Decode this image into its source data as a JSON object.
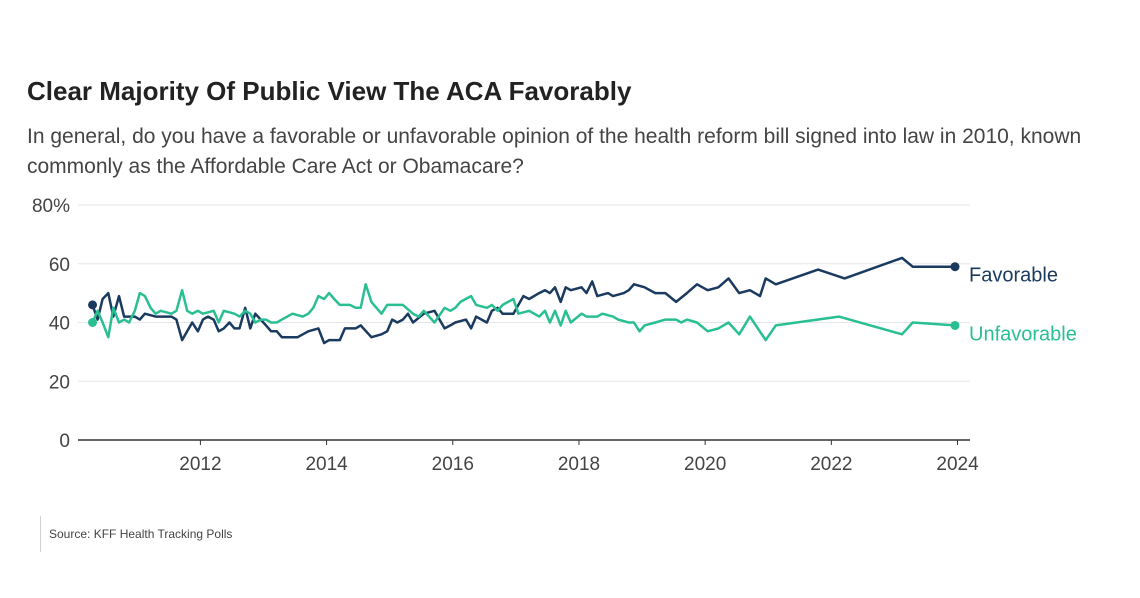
{
  "chart_data": {
    "type": "line",
    "title": "Clear Majority Of Public View The ACA Favorably",
    "subtitle": "In general, do you have a favorable or unfavorable opinion of the health reform bill signed into law in 2010, known commonly as the Affordable Care Act or Obamacare?",
    "xlabel": "",
    "ylabel": "",
    "x_ticks": [
      "2012",
      "2014",
      "2016",
      "2018",
      "2020",
      "2022",
      "2024"
    ],
    "y_ticks": [
      "0",
      "20",
      "40",
      "60",
      "80%"
    ],
    "ylim": [
      0,
      80
    ],
    "xlim": [
      2010.2,
      2024.0
    ],
    "grid": true,
    "legend": "direct labels at line ends",
    "series": [
      {
        "name": "Favorable",
        "color": "#1b3a5f",
        "points": [
          [
            2010.29,
            46
          ],
          [
            2010.37,
            41
          ],
          [
            2010.45,
            48
          ],
          [
            2010.54,
            50
          ],
          [
            2010.62,
            42
          ],
          [
            2010.71,
            49
          ],
          [
            2010.79,
            42
          ],
          [
            2010.87,
            42
          ],
          [
            2010.96,
            42
          ],
          [
            2011.04,
            41
          ],
          [
            2011.12,
            43
          ],
          [
            2011.29,
            42
          ],
          [
            2011.37,
            42
          ],
          [
            2011.45,
            42
          ],
          [
            2011.54,
            42
          ],
          [
            2011.62,
            41
          ],
          [
            2011.71,
            34
          ],
          [
            2011.79,
            37
          ],
          [
            2011.87,
            40
          ],
          [
            2011.96,
            37
          ],
          [
            2012.04,
            41
          ],
          [
            2012.12,
            42
          ],
          [
            2012.21,
            41
          ],
          [
            2012.29,
            37
          ],
          [
            2012.37,
            38
          ],
          [
            2012.46,
            40
          ],
          [
            2012.54,
            38
          ],
          [
            2012.62,
            38
          ],
          [
            2012.71,
            45
          ],
          [
            2012.79,
            38
          ],
          [
            2012.87,
            43
          ],
          [
            2013.04,
            39
          ],
          [
            2013.12,
            37
          ],
          [
            2013.21,
            37
          ],
          [
            2013.29,
            35
          ],
          [
            2013.46,
            35
          ],
          [
            2013.54,
            35
          ],
          [
            2013.71,
            37
          ],
          [
            2013.87,
            38
          ],
          [
            2013.96,
            33
          ],
          [
            2014.04,
            34
          ],
          [
            2014.21,
            34
          ],
          [
            2014.29,
            38
          ],
          [
            2014.46,
            38
          ],
          [
            2014.54,
            39
          ],
          [
            2014.71,
            35
          ],
          [
            2014.87,
            36
          ],
          [
            2014.96,
            37
          ],
          [
            2015.04,
            41
          ],
          [
            2015.12,
            40
          ],
          [
            2015.21,
            41
          ],
          [
            2015.29,
            43
          ],
          [
            2015.37,
            40
          ],
          [
            2015.54,
            43
          ],
          [
            2015.71,
            44
          ],
          [
            2015.87,
            38
          ],
          [
            2015.96,
            39
          ],
          [
            2016.04,
            40
          ],
          [
            2016.21,
            41
          ],
          [
            2016.29,
            38
          ],
          [
            2016.37,
            42
          ],
          [
            2016.54,
            40
          ],
          [
            2016.62,
            44
          ],
          [
            2016.71,
            45
          ],
          [
            2016.79,
            43
          ],
          [
            2016.96,
            43
          ],
          [
            2017.04,
            46
          ],
          [
            2017.12,
            49
          ],
          [
            2017.21,
            48
          ],
          [
            2017.37,
            50
          ],
          [
            2017.46,
            51
          ],
          [
            2017.54,
            50
          ],
          [
            2017.62,
            52
          ],
          [
            2017.71,
            47
          ],
          [
            2017.79,
            52
          ],
          [
            2017.87,
            51
          ],
          [
            2018.04,
            52
          ],
          [
            2018.12,
            50
          ],
          [
            2018.21,
            54
          ],
          [
            2018.29,
            49
          ],
          [
            2018.46,
            50
          ],
          [
            2018.54,
            49
          ],
          [
            2018.71,
            50
          ],
          [
            2018.79,
            51
          ],
          [
            2018.87,
            53
          ],
          [
            2019.04,
            52
          ],
          [
            2019.21,
            50
          ],
          [
            2019.37,
            50
          ],
          [
            2019.54,
            47
          ],
          [
            2019.71,
            50
          ],
          [
            2019.87,
            53
          ],
          [
            2020.04,
            51
          ],
          [
            2020.21,
            52
          ],
          [
            2020.37,
            55
          ],
          [
            2020.54,
            50
          ],
          [
            2020.71,
            51
          ],
          [
            2020.87,
            49
          ],
          [
            2020.96,
            55
          ],
          [
            2021.12,
            53
          ],
          [
            2021.79,
            58
          ],
          [
            2022.21,
            55
          ],
          [
            2023.12,
            62
          ],
          [
            2023.29,
            59
          ],
          [
            2023.96,
            59
          ]
        ]
      },
      {
        "name": "Unfavorable",
        "color": "#2abf92",
        "points": [
          [
            2010.29,
            40
          ],
          [
            2010.37,
            44
          ],
          [
            2010.45,
            40
          ],
          [
            2010.54,
            35
          ],
          [
            2010.62,
            45
          ],
          [
            2010.71,
            40
          ],
          [
            2010.79,
            41
          ],
          [
            2010.87,
            40
          ],
          [
            2010.96,
            44
          ],
          [
            2011.04,
            50
          ],
          [
            2011.12,
            49
          ],
          [
            2011.21,
            45
          ],
          [
            2011.29,
            43
          ],
          [
            2011.37,
            44
          ],
          [
            2011.54,
            43
          ],
          [
            2011.62,
            44
          ],
          [
            2011.71,
            51
          ],
          [
            2011.79,
            44
          ],
          [
            2011.87,
            43
          ],
          [
            2011.96,
            44
          ],
          [
            2012.04,
            43
          ],
          [
            2012.21,
            44
          ],
          [
            2012.29,
            40
          ],
          [
            2012.37,
            44
          ],
          [
            2012.54,
            43
          ],
          [
            2012.62,
            42
          ],
          [
            2012.71,
            44
          ],
          [
            2012.79,
            43
          ],
          [
            2012.87,
            40
          ],
          [
            2012.96,
            41
          ],
          [
            2013.04,
            41
          ],
          [
            2013.12,
            40
          ],
          [
            2013.21,
            40
          ],
          [
            2013.29,
            41
          ],
          [
            2013.46,
            43
          ],
          [
            2013.62,
            42
          ],
          [
            2013.71,
            43
          ],
          [
            2013.79,
            45
          ],
          [
            2013.87,
            49
          ],
          [
            2013.96,
            48
          ],
          [
            2014.04,
            50
          ],
          [
            2014.12,
            48
          ],
          [
            2014.21,
            46
          ],
          [
            2014.37,
            46
          ],
          [
            2014.46,
            45
          ],
          [
            2014.54,
            45
          ],
          [
            2014.62,
            53
          ],
          [
            2014.71,
            47
          ],
          [
            2014.79,
            45
          ],
          [
            2014.87,
            43
          ],
          [
            2014.96,
            46
          ],
          [
            2015.21,
            46
          ],
          [
            2015.37,
            43
          ],
          [
            2015.46,
            42
          ],
          [
            2015.54,
            44
          ],
          [
            2015.71,
            40
          ],
          [
            2015.87,
            45
          ],
          [
            2015.96,
            44
          ],
          [
            2016.04,
            45
          ],
          [
            2016.12,
            47
          ],
          [
            2016.29,
            49
          ],
          [
            2016.37,
            46
          ],
          [
            2016.54,
            45
          ],
          [
            2016.62,
            46
          ],
          [
            2016.71,
            44
          ],
          [
            2016.79,
            46
          ],
          [
            2016.96,
            48
          ],
          [
            2017.04,
            43
          ],
          [
            2017.21,
            44
          ],
          [
            2017.29,
            43
          ],
          [
            2017.37,
            42
          ],
          [
            2017.46,
            44
          ],
          [
            2017.54,
            40
          ],
          [
            2017.62,
            44
          ],
          [
            2017.71,
            39
          ],
          [
            2017.79,
            44
          ],
          [
            2017.87,
            40
          ],
          [
            2018.04,
            43
          ],
          [
            2018.12,
            42
          ],
          [
            2018.29,
            42
          ],
          [
            2018.37,
            43
          ],
          [
            2018.54,
            42
          ],
          [
            2018.62,
            41
          ],
          [
            2018.79,
            40
          ],
          [
            2018.87,
            40
          ],
          [
            2018.96,
            37
          ],
          [
            2019.04,
            39
          ],
          [
            2019.21,
            40
          ],
          [
            2019.37,
            41
          ],
          [
            2019.54,
            41
          ],
          [
            2019.62,
            40
          ],
          [
            2019.71,
            41
          ],
          [
            2019.87,
            40
          ],
          [
            2020.04,
            37
          ],
          [
            2020.21,
            38
          ],
          [
            2020.37,
            40
          ],
          [
            2020.54,
            36
          ],
          [
            2020.71,
            42
          ],
          [
            2020.96,
            34
          ],
          [
            2021.12,
            39
          ],
          [
            2022.12,
            42
          ],
          [
            2023.12,
            36
          ],
          [
            2023.29,
            40
          ],
          [
            2023.96,
            39
          ]
        ]
      }
    ]
  },
  "source": "Source: KFF Health Tracking Polls"
}
